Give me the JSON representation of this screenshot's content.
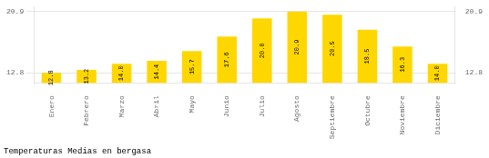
{
  "chart_data": {
    "type": "bar",
    "title": "Temperaturas Medias en bergasa",
    "categories": [
      "Enero",
      "Febrero",
      "Marzo",
      "Abril",
      "Mayo",
      "Junio",
      "Julio",
      "Agosto",
      "Septiembre",
      "Octubre",
      "Noviembre",
      "Diciembre"
    ],
    "values": [
      12.8,
      13.2,
      14.0,
      14.4,
      15.7,
      17.6,
      20.0,
      20.9,
      20.5,
      18.5,
      16.3,
      14.0
    ],
    "value_labels": [
      "12.8",
      "13.2",
      "14.0",
      "14.4",
      "15.7",
      "17.6",
      "20.0",
      "20.9",
      "20.5",
      "18.5",
      "16.3",
      "14.0"
    ],
    "color": "#FFD700",
    "ylim": [
      11.5,
      21.5
    ],
    "yticks": [
      12.8,
      20.9
    ],
    "y2lim": [
      11.5,
      21.5
    ],
    "y2ticks": [
      12.8,
      20.9
    ],
    "grid": true,
    "data_labels": true
  }
}
